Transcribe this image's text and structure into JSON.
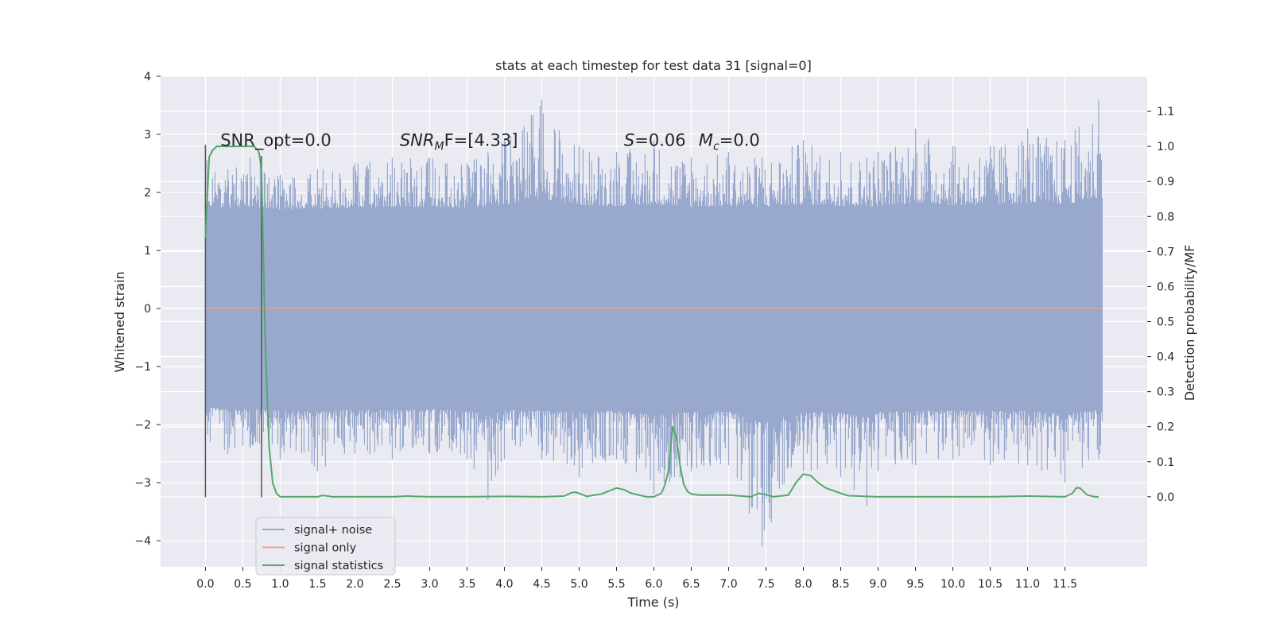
{
  "chart_data": {
    "type": "line",
    "title": "stats at each timestep for test data 31 [signal=0]",
    "xlabel": "Time (s)",
    "ylabel": "Whitened strain",
    "y2label": "Detection probability/MF",
    "xlim": [
      -0.6,
      12.6
    ],
    "ylim": [
      -4.45,
      4.0
    ],
    "y2lim": [
      -0.2,
      1.2
    ],
    "x_ticks": [
      0.0,
      0.5,
      1.0,
      1.5,
      2.0,
      2.5,
      3.0,
      3.5,
      4.0,
      4.5,
      5.0,
      5.5,
      6.0,
      6.5,
      7.0,
      7.5,
      8.0,
      8.5,
      9.0,
      9.5,
      10.0,
      10.5,
      11.0,
      11.5
    ],
    "x_tick_labels": [
      "0.0",
      "0.5",
      "1.0",
      "1.5",
      "2.0",
      "2.5",
      "3.0",
      "3.5",
      "4.0",
      "4.5",
      "5.0",
      "5.5",
      "6.0",
      "6.5",
      "7.0",
      "7.5",
      "8.0",
      "8.5",
      "9.0",
      "9.5",
      "10.0",
      "10.5",
      "11.0",
      "11.5"
    ],
    "y_ticks": [
      4,
      3,
      2,
      1,
      0,
      -1,
      -2,
      -3,
      -4
    ],
    "y_tick_labels": [
      "4",
      "3",
      "2",
      "1",
      "0",
      "−1",
      "−2",
      "−3",
      "−4"
    ],
    "y2_ticks": [
      1.1,
      1.0,
      0.9,
      0.8,
      0.7,
      0.6,
      0.5,
      0.4,
      0.3,
      0.2,
      0.1,
      0.0
    ],
    "y2_tick_labels": [
      "1.1",
      "1.0",
      "0.9",
      "0.8",
      "0.7",
      "0.6",
      "0.5",
      "0.4",
      "0.3",
      "0.2",
      "0.1",
      "0.0"
    ],
    "grid": true,
    "legend_position": "lower-left",
    "series": [
      {
        "name": "signal+ noise",
        "axis": "left",
        "color": "#98a9cd",
        "noise_band": {
          "x_range": [
            0.0,
            12.0
          ],
          "core_low": -1.6,
          "core_high": 1.6,
          "peak_high": 3.6,
          "peak_low": -4.1
        },
        "x": [
          0.0,
          0.3,
          0.6,
          1.0,
          1.5,
          2.0,
          2.5,
          3.0,
          3.5,
          3.78,
          4.0,
          4.5,
          5.0,
          5.5,
          6.0,
          6.5,
          7.0,
          7.45,
          8.0,
          8.5,
          8.85,
          9.0,
          9.5,
          10.0,
          10.5,
          11.0,
          11.5,
          11.95
        ],
        "upper": [
          2.8,
          2.4,
          2.6,
          2.3,
          2.4,
          2.5,
          2.6,
          2.6,
          2.5,
          2.7,
          2.9,
          3.6,
          2.8,
          2.7,
          2.9,
          2.6,
          2.7,
          2.6,
          2.9,
          2.7,
          2.6,
          2.7,
          3.1,
          2.8,
          2.8,
          3.1,
          2.9,
          3.6
        ],
        "lower": [
          -2.3,
          -2.5,
          -2.4,
          -2.6,
          -2.8,
          -2.5,
          -2.6,
          -2.5,
          -2.6,
          -3.3,
          -2.6,
          -2.6,
          -2.9,
          -2.6,
          -3.2,
          -2.8,
          -2.7,
          -4.1,
          -2.8,
          -2.9,
          -3.4,
          -2.8,
          -2.7,
          -2.6,
          -2.7,
          -2.7,
          -3.0,
          -2.6
        ]
      },
      {
        "name": "signal only",
        "axis": "left",
        "color": "#e8a28a",
        "x": [
          0.0,
          12.0
        ],
        "y": [
          0.0,
          0.0
        ]
      },
      {
        "name": "signal statistics",
        "axis": "right",
        "color": "#55a868",
        "x": [
          0.0,
          0.05,
          0.1,
          0.15,
          0.2,
          0.3,
          0.4,
          0.5,
          0.6,
          0.65,
          0.7,
          0.72,
          0.75,
          0.8,
          0.85,
          0.9,
          0.95,
          1.0,
          1.5,
          1.55,
          1.6,
          1.7,
          2.0,
          2.5,
          2.7,
          2.8,
          3.0,
          3.5,
          4.0,
          4.5,
          4.8,
          4.9,
          4.95,
          5.0,
          5.1,
          5.3,
          5.5,
          5.6,
          5.7,
          5.9,
          6.0,
          6.1,
          6.15,
          6.2,
          6.25,
          6.3,
          6.35,
          6.4,
          6.45,
          6.5,
          6.6,
          7.0,
          7.3,
          7.4,
          7.5,
          7.6,
          7.8,
          7.9,
          8.0,
          8.1,
          8.2,
          8.3,
          8.5,
          8.6,
          9.0,
          9.5,
          10.0,
          10.5,
          11.0,
          11.5,
          11.6,
          11.65,
          11.7,
          11.8,
          11.9,
          11.95
        ],
        "y": [
          0.74,
          0.97,
          0.99,
          1.0,
          1.0,
          1.0,
          1.0,
          1.0,
          1.0,
          1.0,
          0.99,
          0.98,
          0.93,
          0.45,
          0.15,
          0.04,
          0.01,
          0.0,
          0.0,
          0.003,
          0.003,
          0.0,
          0.0,
          0.0,
          0.002,
          0.001,
          0.0,
          0.0,
          0.001,
          0.0,
          0.002,
          0.012,
          0.013,
          0.01,
          0.001,
          0.008,
          0.025,
          0.02,
          0.01,
          0.0,
          0.0,
          0.01,
          0.035,
          0.08,
          0.2,
          0.17,
          0.09,
          0.035,
          0.015,
          0.008,
          0.005,
          0.005,
          0.0,
          0.01,
          0.006,
          0.0,
          0.005,
          0.04,
          0.065,
          0.06,
          0.04,
          0.025,
          0.01,
          0.003,
          0.0,
          0.0,
          0.0,
          0.0,
          0.002,
          0.0,
          0.01,
          0.025,
          0.025,
          0.005,
          0.0,
          0.0
        ]
      }
    ],
    "vertical_lines": [
      {
        "x": 0.0,
        "y_range": [
          -3.25,
          2.82
        ],
        "color": "#555555"
      },
      {
        "x": 0.75,
        "y_range": [
          -3.25,
          2.63
        ],
        "color": "#555555"
      }
    ],
    "annotations": [
      {
        "text": "SNR_opt=0.0",
        "x": 0.2,
        "y": 2.9
      },
      {
        "text": "F=[4.33]",
        "prefix_italic": "SNR",
        "prefix_sub": "M",
        "x": 2.6,
        "y": 2.9
      },
      {
        "text": "=0.06",
        "prefix_italic": "S",
        "x": 5.6,
        "y": 2.9
      },
      {
        "text": "=0.0",
        "prefix_italic": "M",
        "prefix_sub": "c",
        "x": 6.6,
        "y": 2.9
      }
    ]
  },
  "colors": {
    "plot_background": "#eaeaf2",
    "grid": "#ffffff",
    "vertical_line": "#555555"
  }
}
